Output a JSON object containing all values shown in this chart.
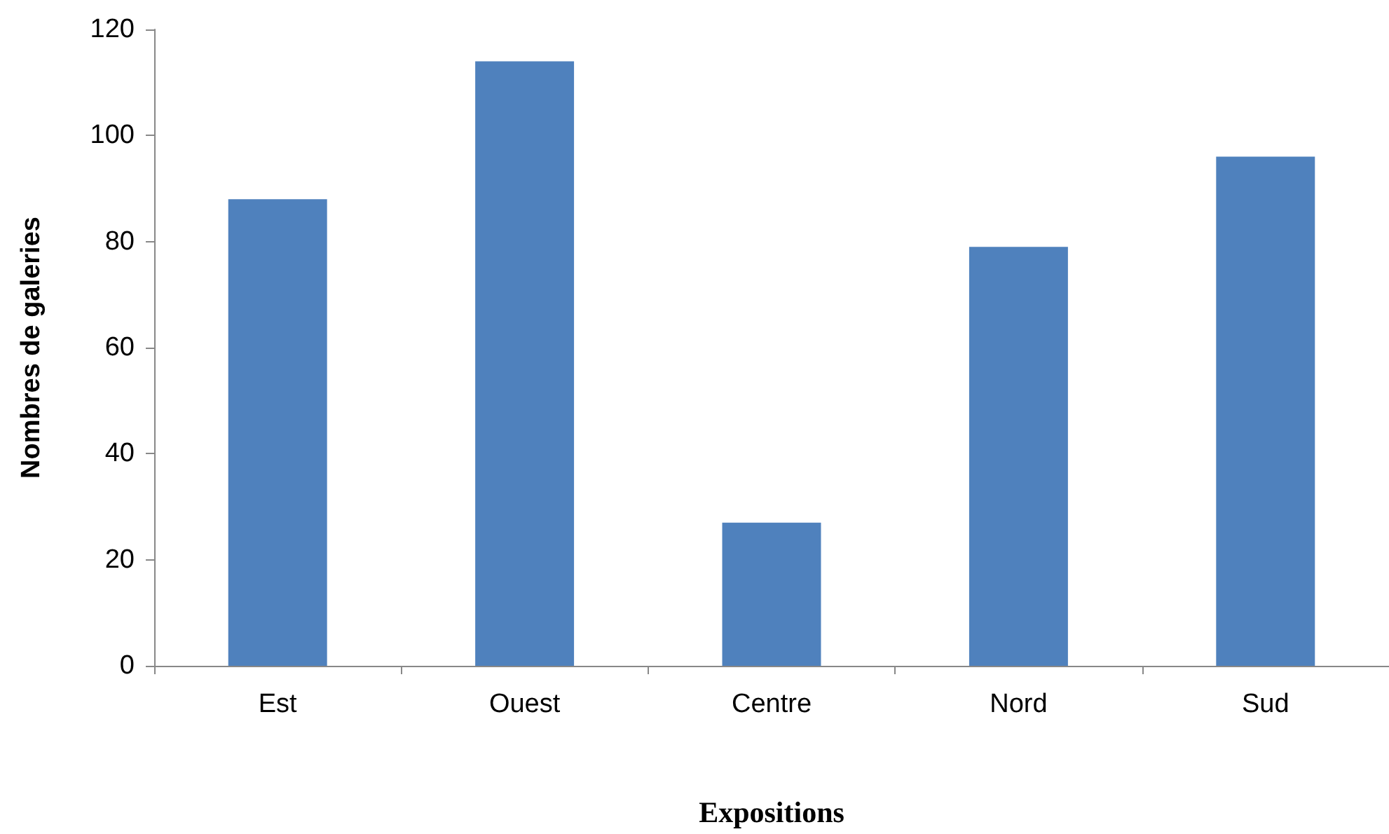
{
  "chart_data": {
    "type": "bar",
    "categories": [
      "Est",
      "Ouest",
      "Centre",
      "Nord",
      "Sud"
    ],
    "values": [
      88,
      114,
      27,
      79,
      96
    ],
    "color": "#4f81bd",
    "xlabel": "Expositions",
    "ylabel": "Nombres de galeries",
    "ylim": [
      0,
      120
    ],
    "yticks": [
      0,
      20,
      40,
      60,
      80,
      100,
      120
    ],
    "grid": false
  }
}
